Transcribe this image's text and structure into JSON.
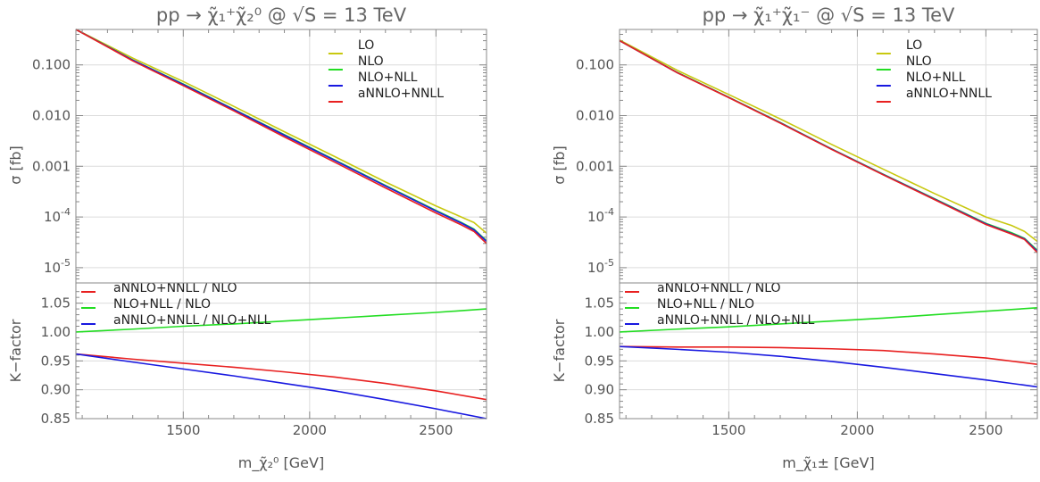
{
  "chart_data": [
    {
      "type": "line",
      "title": "pp → χ̃₁⁺χ̃₂⁰ @ √S = 13 TeV",
      "xlabel": "m_χ̃₂⁰ [GeV]",
      "xlim": [
        1075,
        2700
      ],
      "x_ticks": [
        "1500",
        "2000",
        "2500"
      ],
      "x_tick_values": [
        1500,
        2000,
        2500
      ],
      "top": {
        "ylabel": "σ [fb]",
        "scale": "log",
        "ylim": [
          5e-06,
          0.5
        ],
        "y_tick_values": [
          0.1,
          0.01,
          0.001,
          0.0001,
          1e-05
        ],
        "y_ticks": [
          "0.100",
          "0.010",
          "0.001",
          "10^-4",
          "10^-5"
        ],
        "legend": "top-right",
        "x": [
          1075,
          1300,
          1500,
          1700,
          1900,
          2100,
          2300,
          2500,
          2600,
          2650,
          2700
        ],
        "series": [
          {
            "name": "LO",
            "color": "#c8c810",
            "values": [
              0.5,
              0.136,
              0.047,
              0.0152,
              0.0048,
              0.00155,
              0.00049,
              0.000165,
              0.0001,
              7.8e-05,
              4.8e-05
            ]
          },
          {
            "name": "NLO",
            "color": "#22dd22",
            "values": [
              0.5,
              0.125,
              0.042,
              0.0133,
              0.0042,
              0.00133,
              0.00042,
              0.000135,
              7.8e-05,
              5.8e-05,
              3.4e-05
            ]
          },
          {
            "name": "NLO+NLL",
            "color": "#1818e0",
            "values": [
              0.5,
              0.124,
              0.041,
              0.0131,
              0.0041,
              0.0013,
              0.00041,
              0.000131,
              7.6e-05,
              5.6e-05,
              3.3e-05
            ]
          },
          {
            "name": "aNNLO+NNLL",
            "color": "#e82020",
            "values": [
              0.5,
              0.12,
              0.039,
              0.0124,
              0.0038,
              0.0012,
              0.000375,
              0.00012,
              7e-05,
              5.2e-05,
              3e-05
            ]
          }
        ]
      },
      "bottom": {
        "ylabel": "K−factor",
        "ylim": [
          0.85,
          1.085
        ],
        "y_tick_values": [
          0.85,
          0.9,
          0.95,
          1.0,
          1.05
        ],
        "y_ticks": [
          "0.85",
          "0.90",
          "0.95",
          "1.00",
          "1.05"
        ],
        "legend": "top-left",
        "x": [
          1075,
          1300,
          1500,
          1700,
          1900,
          2100,
          2300,
          2500,
          2700
        ],
        "series": [
          {
            "name": "aNNLO+NNLL / NLO",
            "color": "#e82020",
            "values": [
              0.962,
              0.953,
              0.946,
              0.939,
              0.931,
              0.922,
              0.911,
              0.898,
              0.883
            ]
          },
          {
            "name": "NLO+NLL / NLO",
            "color": "#22dd22",
            "values": [
              1.0,
              1.005,
              1.01,
              1.014,
              1.019,
              1.024,
              1.029,
              1.034,
              1.04
            ]
          },
          {
            "name": "aNNLO+NNLL / NLO+NLL",
            "color": "#1818e0",
            "values": [
              0.962,
              0.948,
              0.936,
              0.924,
              0.911,
              0.898,
              0.883,
              0.867,
              0.848
            ]
          }
        ]
      }
    },
    {
      "type": "line",
      "title": "pp → χ̃₁⁺χ̃₁⁻ @ √S = 13 TeV",
      "xlabel": "m_χ̃₁± [GeV]",
      "xlim": [
        1075,
        2700
      ],
      "x_ticks": [
        "1500",
        "2000",
        "2500"
      ],
      "x_tick_values": [
        1500,
        2000,
        2500
      ],
      "top": {
        "ylabel": "σ [fb]",
        "scale": "log",
        "ylim": [
          5e-06,
          0.5
        ],
        "y_tick_values": [
          0.1,
          0.01,
          0.001,
          0.0001,
          1e-05
        ],
        "y_ticks": [
          "0.100",
          "0.010",
          "0.001",
          "10^-4",
          "10^-5"
        ],
        "legend": "top-right",
        "x": [
          1075,
          1300,
          1500,
          1700,
          1900,
          2100,
          2300,
          2500,
          2600,
          2650,
          2700
        ],
        "series": [
          {
            "name": "LO",
            "color": "#c8c810",
            "values": [
              0.31,
              0.078,
              0.026,
              0.0086,
              0.0027,
              0.00088,
              0.00029,
              0.0001,
              6.8e-05,
              5.2e-05,
              3.3e-05
            ]
          },
          {
            "name": "NLO",
            "color": "#22dd22",
            "values": [
              0.3,
              0.071,
              0.023,
              0.0073,
              0.0022,
              0.0007,
              0.00023,
              7.5e-05,
              4.9e-05,
              3.8e-05,
              2.2e-05
            ]
          },
          {
            "name": "NLO+NLL",
            "color": "#1818e0",
            "values": [
              0.3,
              0.07,
              0.0228,
              0.0072,
              0.00218,
              0.00069,
              0.000225,
              7.3e-05,
              4.7e-05,
              3.7e-05,
              2.1e-05
            ]
          },
          {
            "name": "aNNLO+NNLL",
            "color": "#e82020",
            "values": [
              0.3,
              0.0698,
              0.0226,
              0.0071,
              0.00215,
              0.00068,
              0.00022,
              7.1e-05,
              4.6e-05,
              3.6e-05,
              2e-05
            ]
          }
        ]
      },
      "bottom": {
        "ylabel": "K−factor",
        "ylim": [
          0.85,
          1.085
        ],
        "y_tick_values": [
          0.85,
          0.9,
          0.95,
          1.0,
          1.05
        ],
        "y_ticks": [
          "0.85",
          "0.90",
          "0.95",
          "1.00",
          "1.05"
        ],
        "legend": "top-left",
        "x": [
          1075,
          1300,
          1500,
          1700,
          1900,
          2100,
          2300,
          2500,
          2700
        ],
        "series": [
          {
            "name": "aNNLO+NNLL / NLO",
            "color": "#e82020",
            "values": [
              0.975,
              0.974,
              0.974,
              0.973,
              0.971,
              0.968,
              0.962,
              0.955,
              0.944
            ]
          },
          {
            "name": "NLO+NLL / NLO",
            "color": "#22dd22",
            "values": [
              1.0,
              1.005,
              1.009,
              1.014,
              1.019,
              1.024,
              1.03,
              1.036,
              1.042
            ]
          },
          {
            "name": "aNNLO+NNLL / NLO+NLL",
            "color": "#1818e0",
            "values": [
              0.975,
              0.97,
              0.965,
              0.958,
              0.949,
              0.939,
              0.928,
              0.917,
              0.905
            ]
          }
        ]
      }
    }
  ]
}
